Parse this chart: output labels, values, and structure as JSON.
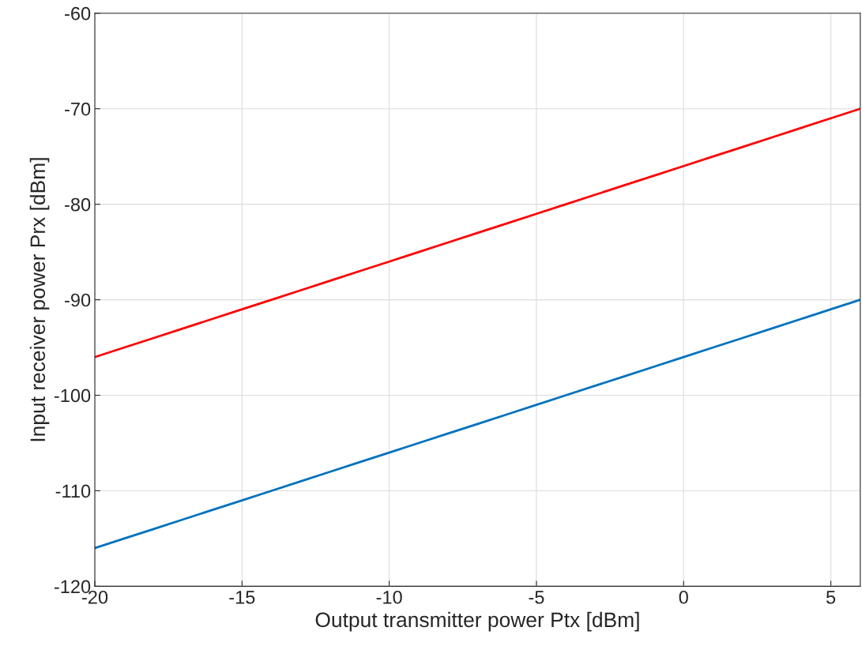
{
  "chart_data": {
    "type": "line",
    "xlabel": "Output transmitter power Ptx [dBm]",
    "ylabel": "Input receiver power Prx [dBm]",
    "x": [
      -20,
      -19,
      -18,
      -17,
      -16,
      -15,
      -14,
      -13,
      -12,
      -11,
      -10,
      -9,
      -8,
      -7,
      -6,
      -5,
      -4,
      -3,
      -2,
      -1,
      0,
      1,
      2,
      3,
      4,
      5,
      6
    ],
    "series": [
      {
        "color": "#0072bd",
        "values": [
          -116,
          -115,
          -114,
          -113,
          -112,
          -111,
          -110,
          -109,
          -108,
          -107,
          -106,
          -105,
          -104,
          -103,
          -102,
          -101,
          -100,
          -99,
          -98,
          -97,
          -96,
          -95,
          -94,
          -93,
          -92,
          -91,
          -90
        ]
      },
      {
        "color": "#ff0000",
        "values": [
          -96,
          -95,
          -94,
          -93,
          -92,
          -91,
          -90,
          -89,
          -88,
          -87,
          -86,
          -85,
          -84,
          -83,
          -82,
          -81,
          -80,
          -79,
          -78,
          -77,
          -76,
          -75,
          -74,
          -73,
          -72,
          -71,
          -70
        ]
      }
    ],
    "xlim": [
      -20,
      6
    ],
    "xticks": [
      -20,
      -15,
      -10,
      -5,
      0,
      5
    ],
    "ylim": [
      -120,
      -60
    ],
    "yticks": [
      -120,
      -110,
      -100,
      -90,
      -80,
      -70,
      -60
    ],
    "grid": true,
    "legend": false
  }
}
